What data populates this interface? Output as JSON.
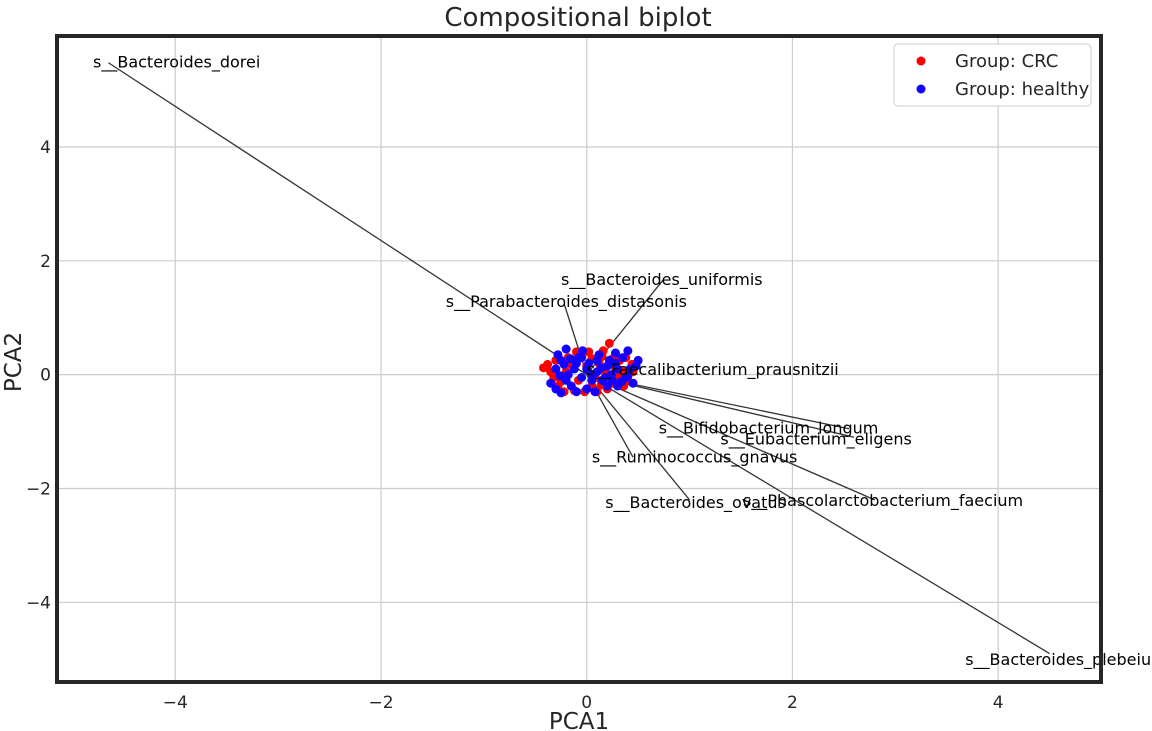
{
  "chart_data": {
    "type": "scatter",
    "title": "Compositional biplot",
    "xlabel": "PCA1",
    "ylabel": "PCA2",
    "xlim": [
      -5.15,
      5.0
    ],
    "ylim": [
      -5.4,
      5.95
    ],
    "xticks": [
      -4,
      -2,
      0,
      2,
      4
    ],
    "yticks": [
      -4,
      -2,
      0,
      2,
      4
    ],
    "xtick_labels": [
      "−4",
      "−2",
      "0",
      "2",
      "4"
    ],
    "ytick_labels": [
      "−4",
      "−2",
      "0",
      "2",
      "4"
    ],
    "grid": true,
    "legend_position": "top-right",
    "series": [
      {
        "name": "Group: CRC",
        "color": "#ff0000",
        "points": [
          [
            0.22,
            0.55
          ],
          [
            0.44,
            0.18
          ],
          [
            -0.42,
            0.12
          ],
          [
            0.15,
            0.32
          ],
          [
            0.28,
            0.12
          ],
          [
            0.05,
            -0.2
          ],
          [
            -0.3,
            0.25
          ],
          [
            0.1,
            -0.3
          ],
          [
            -0.12,
            -0.28
          ],
          [
            0.3,
            -0.05
          ],
          [
            -0.25,
            -0.12
          ],
          [
            0.35,
            0.05
          ],
          [
            -0.05,
            0.35
          ],
          [
            0.2,
            -0.25
          ],
          [
            -0.18,
            0.3
          ],
          [
            0.4,
            -0.1
          ],
          [
            -0.35,
            0.05
          ],
          [
            0.12,
            0.2
          ],
          [
            -0.08,
            -0.1
          ],
          [
            0.25,
            0.28
          ],
          [
            0.0,
            0.15
          ],
          [
            -0.22,
            -0.3
          ],
          [
            0.32,
            0.25
          ],
          [
            -0.15,
            0.18
          ],
          [
            0.08,
            -0.05
          ],
          [
            0.18,
            0.05
          ],
          [
            -0.28,
            -0.2
          ],
          [
            0.05,
            0.28
          ],
          [
            0.38,
            0.3
          ],
          [
            -0.02,
            -0.3
          ],
          [
            0.14,
            -0.18
          ],
          [
            -0.38,
            0.18
          ],
          [
            0.26,
            -0.15
          ],
          [
            -0.1,
            0.4
          ],
          [
            0.02,
            0.4
          ],
          [
            -0.32,
            -0.05
          ],
          [
            0.16,
            0.42
          ],
          [
            -0.2,
            0.05
          ],
          [
            0.36,
            -0.2
          ],
          [
            0.45,
            0.05
          ]
        ]
      },
      {
        "name": "Group: healthy",
        "color": "#1400ff",
        "points": [
          [
            0.5,
            0.25
          ],
          [
            -0.2,
            0.45
          ],
          [
            -0.25,
            -0.32
          ],
          [
            0.45,
            -0.15
          ],
          [
            0.4,
            0.42
          ],
          [
            -0.3,
            0.1
          ],
          [
            0.1,
            0.05
          ],
          [
            -0.1,
            0.2
          ],
          [
            0.0,
            -0.25
          ],
          [
            0.2,
            0.15
          ],
          [
            -0.35,
            -0.15
          ],
          [
            0.3,
            0.1
          ],
          [
            0.15,
            -0.1
          ],
          [
            -0.15,
            -0.2
          ],
          [
            0.25,
            -0.1
          ],
          [
            -0.05,
            0.3
          ],
          [
            0.35,
            0.3
          ],
          [
            -0.25,
            0.25
          ],
          [
            0.05,
            -0.1
          ],
          [
            0.42,
            0.1
          ],
          [
            -0.18,
            0.0
          ],
          [
            0.12,
            0.35
          ],
          [
            -0.28,
            0.35
          ],
          [
            0.08,
            -0.3
          ],
          [
            0.3,
            -0.2
          ],
          [
            -0.12,
            0.1
          ],
          [
            0.22,
            0.25
          ],
          [
            -0.3,
            -0.25
          ],
          [
            0.0,
            0.1
          ],
          [
            0.18,
            -0.05
          ],
          [
            -0.05,
            -0.05
          ],
          [
            0.28,
            0.2
          ],
          [
            -0.2,
            -0.1
          ],
          [
            0.38,
            -0.05
          ],
          [
            0.1,
            0.25
          ],
          [
            -0.1,
            -0.3
          ],
          [
            0.06,
            0.0
          ],
          [
            -0.08,
            0.3
          ],
          [
            0.24,
            0.0
          ],
          [
            0.48,
            0.15
          ],
          [
            -0.22,
            0.18
          ],
          [
            0.14,
            0.12
          ],
          [
            0.34,
            -0.12
          ],
          [
            -0.16,
            0.28
          ],
          [
            0.02,
            0.2
          ],
          [
            0.2,
            -0.2
          ],
          [
            -0.26,
            -0.02
          ],
          [
            0.28,
            0.38
          ],
          [
            -0.04,
            0.42
          ],
          [
            0.4,
            -0.02
          ]
        ]
      }
    ],
    "loadings": [
      {
        "label": "s__Bacteroides_dorei",
        "end": [
          -4.65,
          5.48
        ],
        "text_at": [
          -4.8,
          5.5
        ]
      },
      {
        "label": "s__Bacteroides_uniformis",
        "end": [
          0.75,
          1.68
        ],
        "text_at": [
          -0.25,
          1.68
        ]
      },
      {
        "label": "s__Parabacteroides_distasonis",
        "end": [
          -0.22,
          1.25
        ],
        "text_at": [
          -1.37,
          1.29
        ]
      },
      {
        "label": "s__Faecalibacterium_prausnitzii",
        "end": [
          0.05,
          0.07
        ],
        "text_at": [
          0.0,
          0.1
        ]
      },
      {
        "label": "s__Bifidobacterium_longum",
        "end": [
          2.55,
          -0.95
        ],
        "text_at": [
          0.7,
          -0.93
        ]
      },
      {
        "label": "s__Eubacterium_eligens",
        "end": [
          2.6,
          -1.1
        ],
        "text_at": [
          1.3,
          -1.12
        ]
      },
      {
        "label": "s__Ruminococcus_gnavus",
        "end": [
          0.45,
          -1.45
        ],
        "text_at": [
          0.05,
          -1.44
        ]
      },
      {
        "label": "s__Bacteroides_ovatus",
        "end": [
          1.0,
          -2.2
        ],
        "text_at": [
          0.18,
          -2.24
        ]
      },
      {
        "label": "s__Phascolarctobacterium_faecium",
        "end": [
          2.8,
          -2.2
        ],
        "text_at": [
          1.52,
          -2.2
        ]
      },
      {
        "label": "s__Bacteroides_plebeius",
        "end": [
          4.5,
          -4.9
        ],
        "text_at": [
          3.68,
          -5.0
        ]
      }
    ]
  }
}
